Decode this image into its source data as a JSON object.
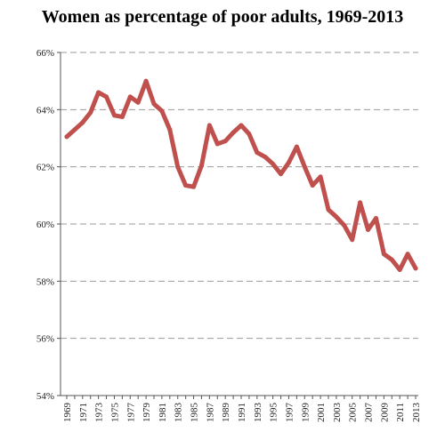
{
  "chart_data": {
    "type": "line",
    "title": "Women as percentage of poor adults, 1969-2013",
    "xlabel": "",
    "ylabel": "",
    "ylim": [
      54,
      66
    ],
    "y_ticks": [
      "54%",
      "56%",
      "58%",
      "60%",
      "62%",
      "64%",
      "66%"
    ],
    "x_tick_labels": [
      "1969",
      "1971",
      "1973",
      "1975",
      "1977",
      "1979",
      "1981",
      "1983",
      "1985",
      "1987",
      "1989",
      "1991",
      "1993",
      "1995",
      "1997",
      "1999",
      "2001",
      "2003",
      "2005",
      "2007",
      "2009",
      "2011",
      "2013"
    ],
    "grid": "horizontal dashed",
    "legend": "none",
    "series": [
      {
        "color": "#c0504d",
        "x": [
          1969,
          1970,
          1971,
          1972,
          1973,
          1974,
          1975,
          1976,
          1977,
          1978,
          1979,
          1980,
          1981,
          1982,
          1983,
          1984,
          1985,
          1986,
          1987,
          1988,
          1989,
          1990,
          1991,
          1992,
          1993,
          1994,
          1995,
          1996,
          1997,
          1998,
          1999,
          2000,
          2001,
          2002,
          2003,
          2004,
          2005,
          2006,
          2007,
          2008,
          2009,
          2010,
          2011,
          2012,
          2013
        ],
        "values": [
          63.05,
          63.3,
          63.55,
          63.9,
          64.6,
          64.45,
          63.8,
          63.75,
          64.45,
          64.25,
          65.0,
          64.2,
          63.95,
          63.3,
          62.0,
          61.35,
          61.3,
          62.05,
          63.45,
          62.8,
          62.9,
          63.2,
          63.45,
          63.15,
          62.5,
          62.35,
          62.1,
          61.75,
          62.15,
          62.7,
          62.0,
          61.35,
          61.65,
          60.5,
          60.25,
          59.95,
          59.45,
          60.75,
          59.8,
          60.2,
          58.95,
          58.75,
          58.4,
          58.95,
          58.45
        ]
      }
    ]
  }
}
